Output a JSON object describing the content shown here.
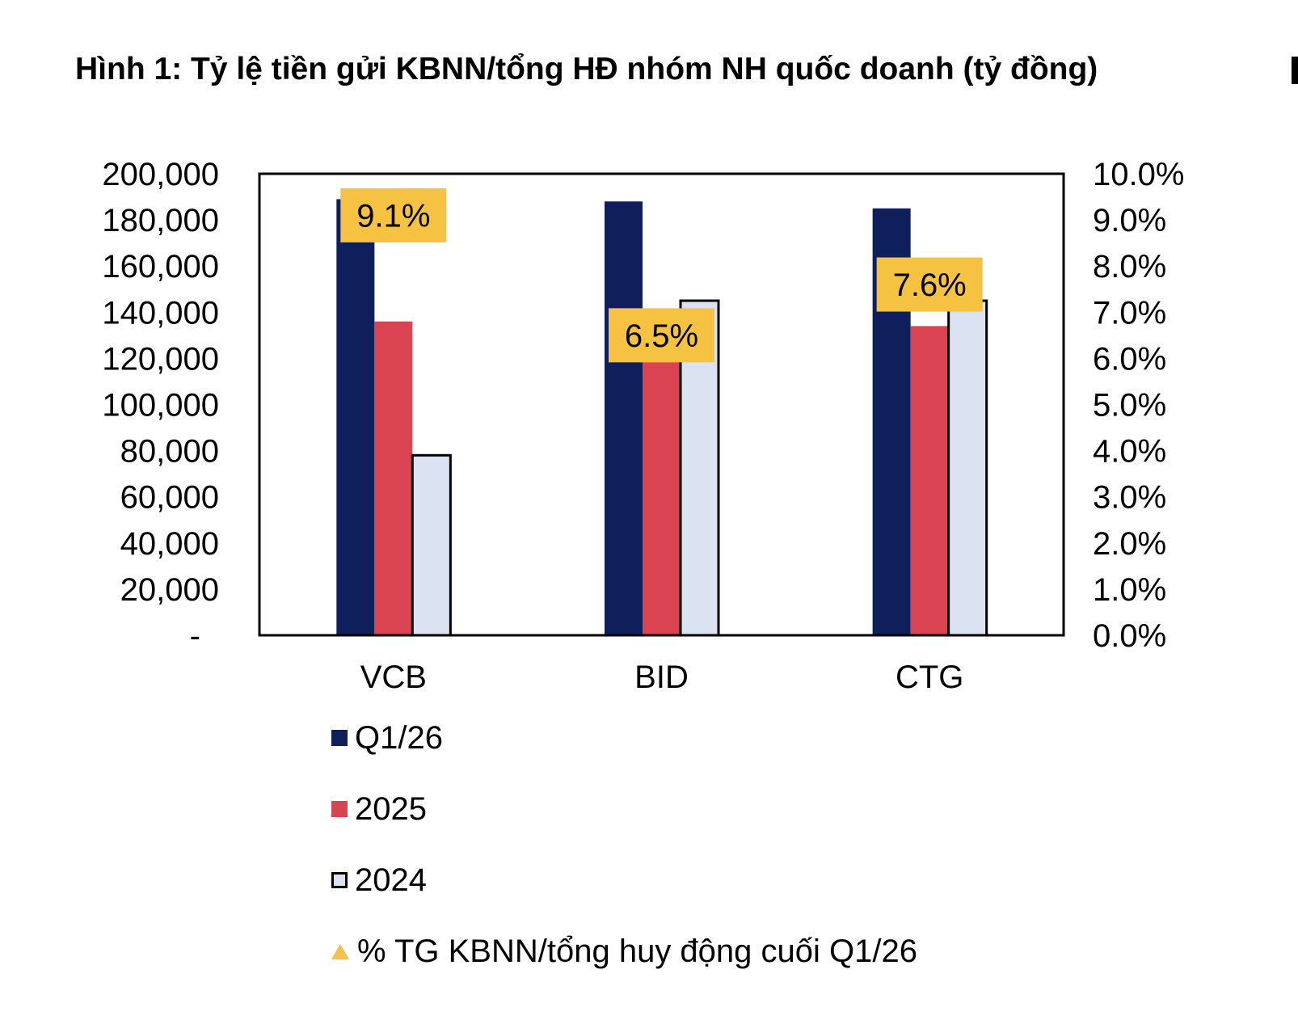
{
  "title": "Hình 1: Tỷ lệ tiền gửi KBNN/tổng HĐ nhóm NH quốc doanh (tỷ đồng)",
  "colors": {
    "q126": "#0e1f5b",
    "y2025": "#d94352",
    "y2024": "#dbe2f2",
    "callout": "#f5c242",
    "ratio_marker": "#f2c14e"
  },
  "chart_data": {
    "type": "bar",
    "title": "Hình 1: Tỷ lệ tiền gửi KBNN/tổng HĐ nhóm NH quốc doanh (tỷ đồng)",
    "categories": [
      "VCB",
      "BID",
      "CTG"
    ],
    "series": [
      {
        "name": "Q1/26",
        "values": [
          189000,
          188000,
          185000
        ],
        "color": "#0e1f5b"
      },
      {
        "name": "2025",
        "values": [
          136000,
          125000,
          134000
        ],
        "color": "#d94352"
      },
      {
        "name": "2024",
        "values": [
          78000,
          145000,
          145000
        ],
        "color": "#dbe2f2"
      }
    ],
    "ratio_series": {
      "name": "% TG KBNN/tổng huy động cuối Q1/26",
      "values": [
        9.1,
        6.5,
        7.6
      ],
      "labels": [
        "9.1%",
        "6.5%",
        "7.6%"
      ]
    },
    "y_left": {
      "range": [
        0,
        200000
      ],
      "ticks": [
        "-",
        "20,000",
        "40,000",
        "60,000",
        "80,000",
        "100,000",
        "120,000",
        "140,000",
        "160,000",
        "180,000",
        "200,000"
      ]
    },
    "y_right": {
      "range": [
        0,
        10
      ],
      "ticks": [
        "0.0%",
        "1.0%",
        "2.0%",
        "3.0%",
        "4.0%",
        "5.0%",
        "6.0%",
        "7.0%",
        "8.0%",
        "9.0%",
        "10.0%"
      ]
    },
    "grid": false,
    "legend_position": "bottom"
  },
  "legend": {
    "items": [
      {
        "label": "Q1/26"
      },
      {
        "label": "2025"
      },
      {
        "label": "2024"
      },
      {
        "label": "% TG KBNN/tổng huy động cuối Q1/26"
      }
    ]
  }
}
